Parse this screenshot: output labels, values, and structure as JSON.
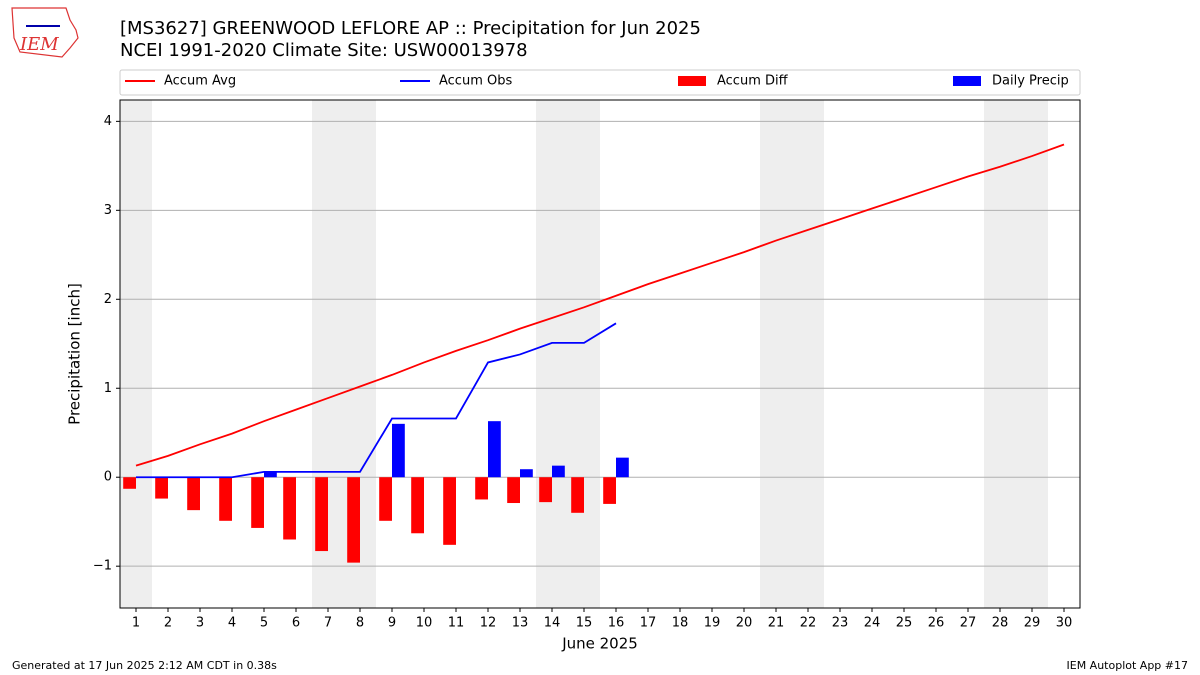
{
  "chart_data": {
    "type": "combo",
    "title": "[MS3627] GREENWOOD LEFLORE AP :: Precipitation for Jun 2025",
    "subtitle": "NCEI 1991-2020 Climate Site: USW00013978",
    "logo_text": "IEM",
    "x_label": "June 2025",
    "y_label": "Precipitation [inch]",
    "x": [
      1,
      2,
      3,
      4,
      5,
      6,
      7,
      8,
      9,
      10,
      11,
      12,
      13,
      14,
      15,
      16,
      17,
      18,
      19,
      20,
      21,
      22,
      23,
      24,
      25,
      26,
      27,
      28,
      29,
      30
    ],
    "xlim": [
      0.5,
      30.5
    ],
    "xticks": [
      1,
      2,
      3,
      4,
      5,
      6,
      7,
      8,
      9,
      10,
      11,
      12,
      13,
      14,
      15,
      16,
      17,
      18,
      19,
      20,
      21,
      22,
      23,
      24,
      25,
      26,
      27,
      28,
      29,
      30
    ],
    "ylim": [
      -1.47,
      4.24
    ],
    "yticks": [
      {
        "value": -1,
        "label": "−1"
      },
      0,
      1,
      2,
      3,
      4
    ],
    "grid": true,
    "shaded_spans": [
      [
        0.5,
        1.5
      ],
      [
        6.5,
        8.5
      ],
      [
        13.5,
        15.5
      ],
      [
        20.5,
        22.5
      ],
      [
        27.5,
        29.5
      ]
    ],
    "series": [
      {
        "name": "Accum Avg",
        "kind": "line",
        "color": "#ff0000",
        "values": [
          0.13,
          0.24,
          0.37,
          0.49,
          0.63,
          0.76,
          0.89,
          1.02,
          1.15,
          1.29,
          1.42,
          1.54,
          1.67,
          1.79,
          1.91,
          2.04,
          2.17,
          2.29,
          2.41,
          2.53,
          2.66,
          2.78,
          2.9,
          3.02,
          3.14,
          3.26,
          3.38,
          3.49,
          3.61,
          3.74
        ]
      },
      {
        "name": "Accum Obs",
        "kind": "line",
        "color": "#0000ff",
        "values": [
          0,
          0,
          0,
          0,
          0.06,
          0.06,
          0.06,
          0.06,
          0.66,
          0.66,
          0.66,
          1.29,
          1.38,
          1.51,
          1.51,
          1.73,
          null,
          null,
          null,
          null,
          null,
          null,
          null,
          null,
          null,
          null,
          null,
          null,
          null,
          null
        ]
      },
      {
        "name": "Accum Diff",
        "kind": "bar",
        "color": "#ff0000",
        "values": [
          -0.13,
          -0.24,
          -0.37,
          -0.49,
          -0.57,
          -0.7,
          -0.83,
          -0.96,
          -0.49,
          -0.63,
          -0.76,
          -0.25,
          -0.29,
          -0.28,
          -0.4,
          -0.3,
          null,
          null,
          null,
          null,
          null,
          null,
          null,
          null,
          null,
          null,
          null,
          null,
          null,
          null
        ]
      },
      {
        "name": "Daily Precip",
        "kind": "bar",
        "color": "#0000ff",
        "values": [
          0,
          0,
          0,
          0,
          0.06,
          0,
          0,
          0,
          0.6,
          0,
          0,
          0.63,
          0.09,
          0.13,
          0,
          0.22,
          null,
          null,
          null,
          null,
          null,
          null,
          null,
          null,
          null,
          null,
          null,
          null,
          null,
          null
        ]
      }
    ],
    "footer_left": "Generated at 17 Jun 2025 2:12 AM CDT in 0.38s",
    "footer_right": "IEM Autoplot App #17"
  }
}
